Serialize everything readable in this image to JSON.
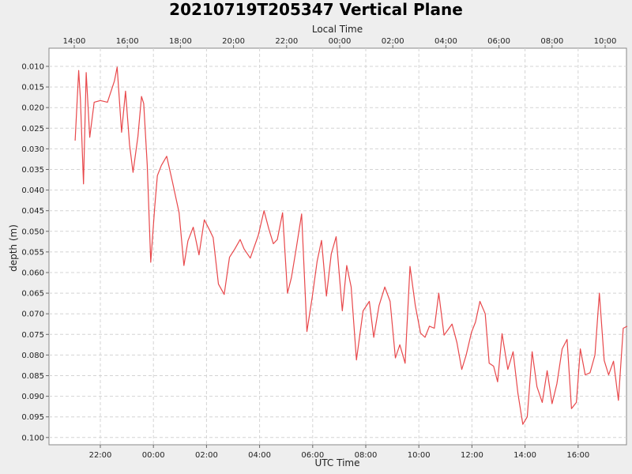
{
  "chart_data": {
    "type": "line",
    "title": "20210719T205347 Vertical Plane",
    "top_axis": {
      "label": "Local Time",
      "ticks": [
        "14:00",
        "16:00",
        "18:00",
        "20:00",
        "22:00",
        "00:00",
        "02:00",
        "04:00",
        "06:00",
        "08:00",
        "10:00"
      ]
    },
    "xlabel": "UTC Time",
    "ylabel": "depth (m)",
    "ylim": [
      0.008,
      0.101
    ],
    "y_inverted": true,
    "y_ticks": [
      "0.010",
      "0.015",
      "0.020",
      "0.025",
      "0.030",
      "0.035",
      "0.040",
      "0.045",
      "0.050",
      "0.055",
      "0.060",
      "0.065",
      "0.070",
      "0.075",
      "0.080",
      "0.085",
      "0.090",
      "0.095",
      "0.100"
    ],
    "x_ticks": [
      "22:00",
      "00:00",
      "02:00",
      "04:00",
      "06:00",
      "08:00",
      "10:00",
      "12:00",
      "14:00",
      "16:00"
    ],
    "grid": true,
    "series": [
      {
        "color": "#e8484b",
        "points": [
          [
            "2021-07-19 21:03",
            0.028
          ],
          [
            "2021-07-19 21:11",
            0.011
          ],
          [
            "2021-07-19 21:15",
            0.018
          ],
          [
            "2021-07-19 21:22",
            0.0385
          ],
          [
            "2021-07-19 21:28",
            0.0115
          ],
          [
            "2021-07-19 21:36",
            0.0272
          ],
          [
            "2021-07-19 21:46",
            0.0187
          ],
          [
            "2021-07-19 22:00",
            0.0183
          ],
          [
            "2021-07-19 22:16",
            0.0187
          ],
          [
            "2021-07-19 22:32",
            0.0135
          ],
          [
            "2021-07-19 22:38",
            0.0102
          ],
          [
            "2021-07-19 22:48",
            0.026
          ],
          [
            "2021-07-19 22:57",
            0.016
          ],
          [
            "2021-07-19 23:06",
            0.029
          ],
          [
            "2021-07-19 23:14",
            0.0357
          ],
          [
            "2021-07-19 23:25",
            0.027
          ],
          [
            "2021-07-19 23:33",
            0.0173
          ],
          [
            "2021-07-19 23:38",
            0.019
          ],
          [
            "2021-07-19 23:46",
            0.034
          ],
          [
            "2021-07-19 23:54",
            0.0575
          ],
          [
            "2021-07-20 00:03",
            0.044
          ],
          [
            "2021-07-20 00:09",
            0.0365
          ],
          [
            "2021-07-20 00:18",
            0.034
          ],
          [
            "2021-07-20 00:30",
            0.0318
          ],
          [
            "2021-07-20 00:43",
            0.038
          ],
          [
            "2021-07-20 00:58",
            0.0455
          ],
          [
            "2021-07-20 01:09",
            0.0583
          ],
          [
            "2021-07-20 01:18",
            0.0523
          ],
          [
            "2021-07-20 01:30",
            0.049
          ],
          [
            "2021-07-20 01:43",
            0.0557
          ],
          [
            "2021-07-20 01:55",
            0.0472
          ],
          [
            "2021-07-20 02:06",
            0.0495
          ],
          [
            "2021-07-20 02:15",
            0.0515
          ],
          [
            "2021-07-20 02:27",
            0.0628
          ],
          [
            "2021-07-20 02:40",
            0.0653
          ],
          [
            "2021-07-20 02:52",
            0.0563
          ],
          [
            "2021-07-20 03:04",
            0.0543
          ],
          [
            "2021-07-20 03:16",
            0.052
          ],
          [
            "2021-07-20 03:25",
            0.0543
          ],
          [
            "2021-07-20 03:39",
            0.0565
          ],
          [
            "2021-07-20 03:57",
            0.051
          ],
          [
            "2021-07-20 04:10",
            0.045
          ],
          [
            "2021-07-20 04:21",
            0.0495
          ],
          [
            "2021-07-20 04:31",
            0.053
          ],
          [
            "2021-07-20 04:40",
            0.052
          ],
          [
            "2021-07-20 04:52",
            0.0455
          ],
          [
            "2021-07-20 05:03",
            0.065
          ],
          [
            "2021-07-20 05:12",
            0.0612
          ],
          [
            "2021-07-20 05:23",
            0.054
          ],
          [
            "2021-07-20 05:35",
            0.0458
          ],
          [
            "2021-07-20 05:47",
            0.0743
          ],
          [
            "2021-07-20 05:59",
            0.066
          ],
          [
            "2021-07-20 06:10",
            0.0573
          ],
          [
            "2021-07-20 06:20",
            0.0522
          ],
          [
            "2021-07-20 06:31",
            0.0657
          ],
          [
            "2021-07-20 06:42",
            0.0555
          ],
          [
            "2021-07-20 06:53",
            0.0513
          ],
          [
            "2021-07-20 07:07",
            0.0693
          ],
          [
            "2021-07-20 07:17",
            0.0583
          ],
          [
            "2021-07-20 07:27",
            0.0635
          ],
          [
            "2021-07-20 07:39",
            0.0812
          ],
          [
            "2021-07-20 07:54",
            0.0693
          ],
          [
            "2021-07-20 08:08",
            0.067
          ],
          [
            "2021-07-20 08:18",
            0.0757
          ],
          [
            "2021-07-20 08:30",
            0.068
          ],
          [
            "2021-07-20 08:43",
            0.0635
          ],
          [
            "2021-07-20 08:55",
            0.067
          ],
          [
            "2021-07-20 09:07",
            0.0807
          ],
          [
            "2021-07-20 09:17",
            0.0775
          ],
          [
            "2021-07-20 09:29",
            0.082
          ],
          [
            "2021-07-20 09:40",
            0.0585
          ],
          [
            "2021-07-20 09:52",
            0.068
          ],
          [
            "2021-07-20 10:04",
            0.0747
          ],
          [
            "2021-07-20 10:14",
            0.0757
          ],
          [
            "2021-07-20 10:24",
            0.073
          ],
          [
            "2021-07-20 10:35",
            0.0735
          ],
          [
            "2021-07-20 10:45",
            0.065
          ],
          [
            "2021-07-20 10:57",
            0.0752
          ],
          [
            "2021-07-20 11:07",
            0.0737
          ],
          [
            "2021-07-20 11:15",
            0.0725
          ],
          [
            "2021-07-20 11:26",
            0.077
          ],
          [
            "2021-07-20 11:37",
            0.0835
          ],
          [
            "2021-07-20 11:47",
            0.08
          ],
          [
            "2021-07-20 11:59",
            0.0745
          ],
          [
            "2021-07-20 12:08",
            0.072
          ],
          [
            "2021-07-20 12:18",
            0.067
          ],
          [
            "2021-07-20 12:30",
            0.07
          ],
          [
            "2021-07-20 12:39",
            0.082
          ],
          [
            "2021-07-20 12:49",
            0.0827
          ],
          [
            "2021-07-20 12:58",
            0.0865
          ],
          [
            "2021-07-20 13:08",
            0.0748
          ],
          [
            "2021-07-20 13:21",
            0.0835
          ],
          [
            "2021-07-20 13:33",
            0.0792
          ],
          [
            "2021-07-20 13:44",
            0.0893
          ],
          [
            "2021-07-20 13:55",
            0.0968
          ],
          [
            "2021-07-20 14:05",
            0.095
          ],
          [
            "2021-07-20 14:16",
            0.0792
          ],
          [
            "2021-07-20 14:27",
            0.0877
          ],
          [
            "2021-07-20 14:39",
            0.0915
          ],
          [
            "2021-07-20 14:50",
            0.0838
          ],
          [
            "2021-07-20 15:01",
            0.0918
          ],
          [
            "2021-07-20 15:12",
            0.087
          ],
          [
            "2021-07-20 15:24",
            0.0785
          ],
          [
            "2021-07-20 15:35",
            0.0762
          ],
          [
            "2021-07-20 15:45",
            0.093
          ],
          [
            "2021-07-20 15:56",
            0.0915
          ],
          [
            "2021-07-20 16:05",
            0.0785
          ],
          [
            "2021-07-20 16:16",
            0.0848
          ],
          [
            "2021-07-20 16:27",
            0.0843
          ],
          [
            "2021-07-20 16:38",
            0.08
          ],
          [
            "2021-07-20 16:48",
            0.065
          ],
          [
            "2021-07-20 16:59",
            0.0813
          ],
          [
            "2021-07-20 17:09",
            0.0848
          ],
          [
            "2021-07-20 17:20",
            0.0815
          ],
          [
            "2021-07-20 17:31",
            0.091
          ],
          [
            "2021-07-20 17:42",
            0.0735
          ],
          [
            "2021-07-20 17:51",
            0.073
          ]
        ]
      }
    ]
  }
}
